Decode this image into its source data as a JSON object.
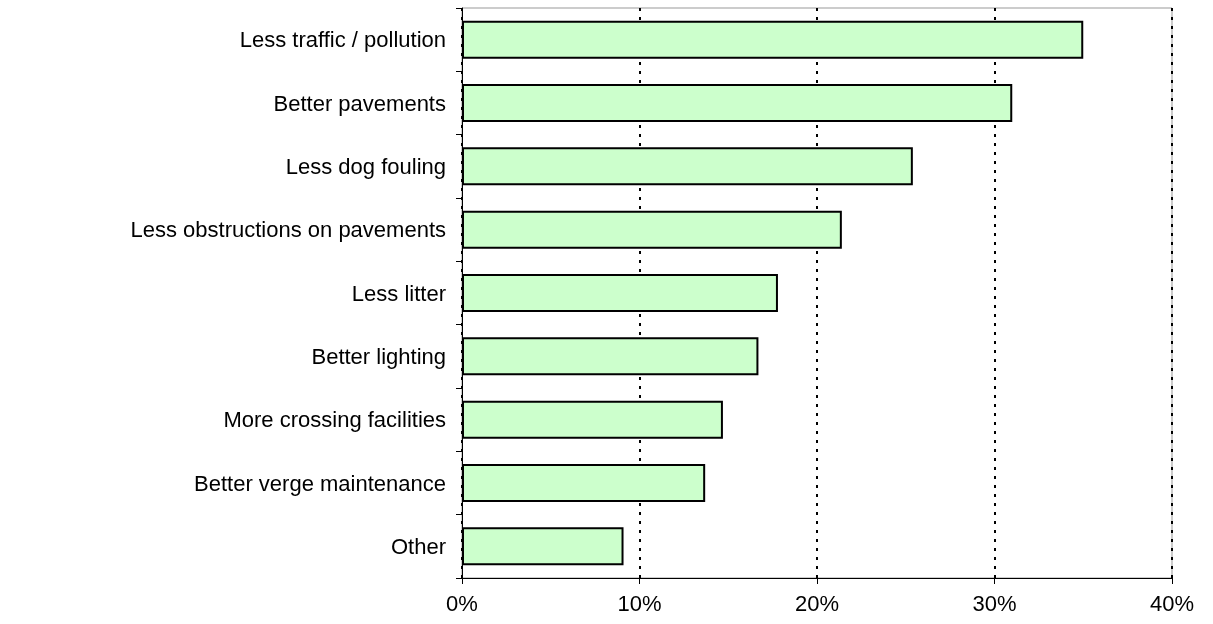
{
  "chart_data": {
    "type": "bar",
    "orientation": "horizontal",
    "categories": [
      "Less traffic / pollution",
      "Better pavements",
      "Less dog fouling",
      "Less obstructions on pavements",
      "Less litter",
      "Better lighting",
      "More crossing facilities",
      "Better verge maintenance",
      "Other"
    ],
    "values": [
      35.0,
      31.0,
      25.4,
      21.4,
      17.8,
      16.7,
      14.7,
      13.7,
      9.1
    ],
    "color": "#ccffcc",
    "xlim": [
      0,
      40
    ],
    "xticks": [
      {
        "value": 0,
        "label": "0%"
      },
      {
        "value": 10,
        "label": "10%"
      },
      {
        "value": 20,
        "label": "20%"
      },
      {
        "value": 30,
        "label": "30%"
      },
      {
        "value": 40,
        "label": "40%"
      }
    ],
    "grid": "x"
  }
}
